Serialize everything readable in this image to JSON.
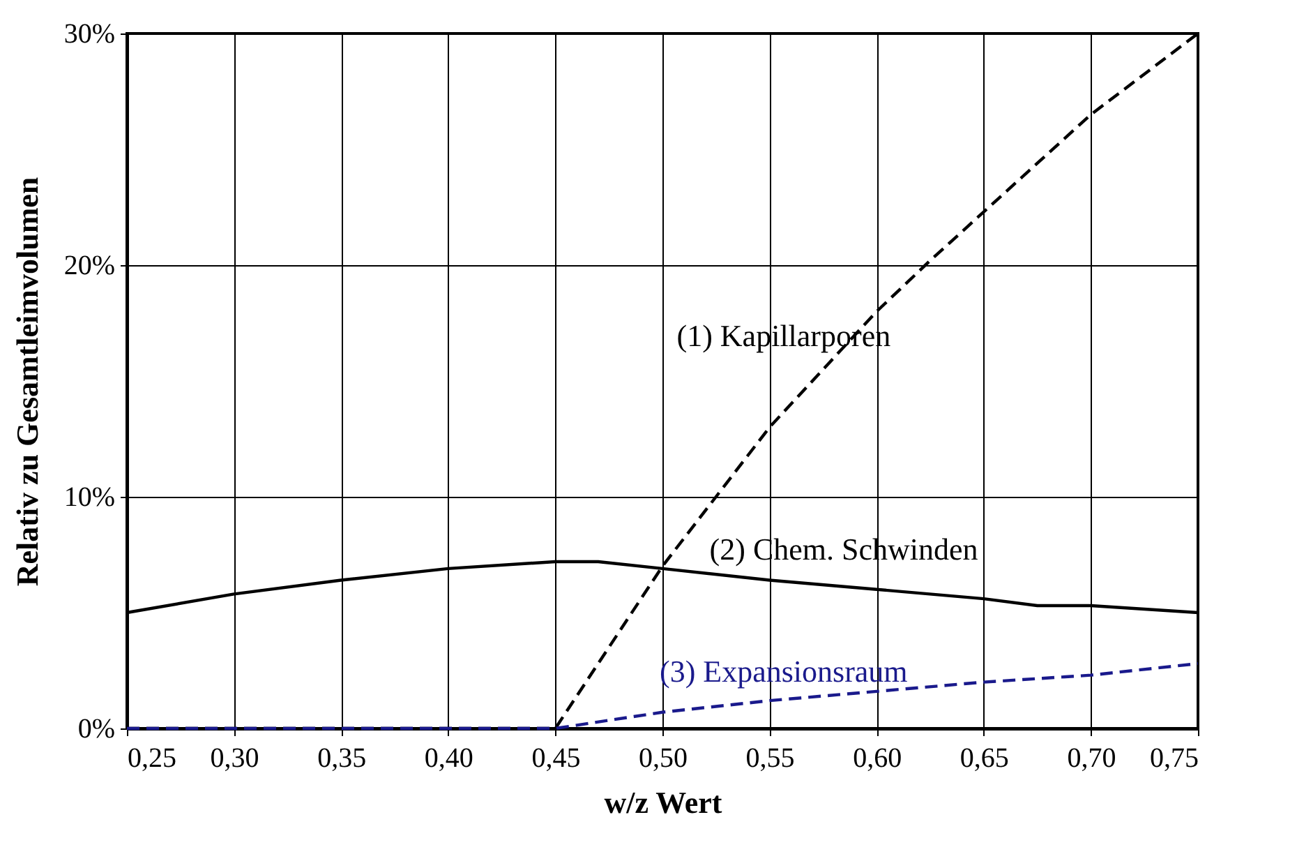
{
  "chart_data": {
    "type": "line",
    "xlabel": "w/z Wert",
    "ylabel": "Relativ zu Gesamtleimvolumen",
    "xlim": [
      0.25,
      0.75
    ],
    "ylim": [
      0,
      30
    ],
    "xticks": [
      {
        "value": 0.25,
        "label": "0,25"
      },
      {
        "value": 0.3,
        "label": "0,30"
      },
      {
        "value": 0.35,
        "label": "0,35"
      },
      {
        "value": 0.4,
        "label": "0,40"
      },
      {
        "value": 0.45,
        "label": "0,45"
      },
      {
        "value": 0.5,
        "label": "0,50"
      },
      {
        "value": 0.55,
        "label": "0,55"
      },
      {
        "value": 0.6,
        "label": "0,60"
      },
      {
        "value": 0.65,
        "label": "0,65"
      },
      {
        "value": 0.7,
        "label": "0,70"
      },
      {
        "value": 0.75,
        "label": "0,75"
      }
    ],
    "yticks": [
      {
        "value": 0,
        "label": "0%"
      },
      {
        "value": 10,
        "label": "10%"
      },
      {
        "value": 20,
        "label": "20%"
      },
      {
        "value": 30,
        "label": "30%"
      }
    ],
    "grid": true,
    "marker": "none",
    "series": [
      {
        "name": "(1) Kapillarporen",
        "color": "#000000",
        "line_style": "dashed",
        "x": [
          0.25,
          0.3,
          0.35,
          0.4,
          0.45,
          0.5,
          0.55,
          0.6,
          0.625,
          0.65,
          0.7,
          0.75
        ],
        "values": [
          0,
          0,
          0,
          0,
          0,
          7,
          13,
          18,
          20.2,
          22.3,
          26.5,
          30
        ]
      },
      {
        "name": "(2) Chem. Schwinden",
        "color": "#000000",
        "line_style": "solid",
        "x": [
          0.25,
          0.3,
          0.35,
          0.4,
          0.45,
          0.47,
          0.5,
          0.55,
          0.6,
          0.65,
          0.675,
          0.7,
          0.75
        ],
        "values": [
          5,
          5.8,
          6.4,
          6.9,
          7.2,
          7.2,
          6.9,
          6.4,
          6,
          5.6,
          5.3,
          5.3,
          5
        ]
      },
      {
        "name": "(3) Expansionsraum",
        "color": "#1a1a8c",
        "line_style": "dashed",
        "x": [
          0.25,
          0.3,
          0.35,
          0.4,
          0.45,
          0.5,
          0.55,
          0.6,
          0.65,
          0.7,
          0.75
        ],
        "values": [
          0,
          0,
          0,
          0,
          0,
          0.7,
          1.2,
          1.6,
          2,
          2.3,
          2.8
        ]
      }
    ]
  }
}
